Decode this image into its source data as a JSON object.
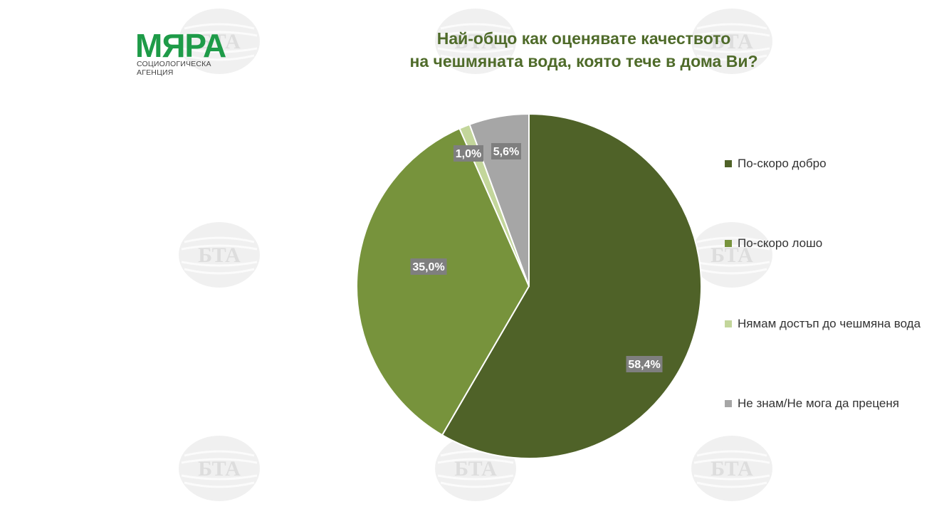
{
  "logo": {
    "word": "МЯРА",
    "subtitle": "СОЦИОЛОГИЧЕСКА АГЕНЦИЯ"
  },
  "watermark": {
    "text": "БТА"
  },
  "colors": {
    "accent": "#4f6b2a",
    "brand": "#1e9b48"
  },
  "chart_data": {
    "type": "pie",
    "title": [
      "Най-общо как оценявате качеството",
      "на чешмяната вода, която тече в дома Ви?"
    ],
    "legend_position": "right",
    "slices": [
      {
        "name": "По-скоро добро",
        "value": 58.4,
        "label": "58,4%",
        "color": "#4f6228"
      },
      {
        "name": "По-скоро лошо",
        "value": 35.0,
        "label": "35,0%",
        "color": "#77933c"
      },
      {
        "name": "Нямам достъп до чешмяна вода",
        "value": 1.0,
        "label": "1,0%",
        "color": "#c3d69b"
      },
      {
        "name": "Не знам/Не мога да преценя",
        "value": 5.6,
        "label": "5,6%",
        "color": "#a6a6a6"
      }
    ]
  }
}
